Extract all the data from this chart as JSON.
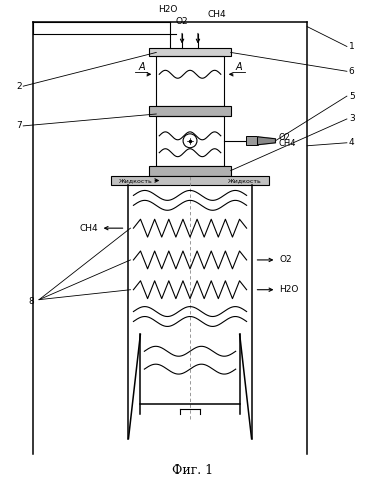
{
  "title": "Фиг. 1",
  "background_color": "#ffffff",
  "line_color": "#000000",
  "fig_width": 3.86,
  "fig_height": 5.0,
  "dpi": 100,
  "labels": {
    "H2O_top": "Н2О",
    "O2_top": "О2",
    "CH4_top": "СН4",
    "O2_right": "О2",
    "CH4_right": "СН4",
    "CH4_left": "СН4",
    "O2_mid_right": "О2",
    "H2O_mid_right": "Н2О",
    "zhidkost_left": "Жидкость",
    "zhidkost_right": "Жидкость",
    "num1": "1",
    "num2": "2",
    "num3": "3",
    "num4": "4",
    "num5": "5",
    "num6": "6",
    "num7": "7",
    "num8": "8",
    "A_left": "А",
    "A_right": "А"
  }
}
